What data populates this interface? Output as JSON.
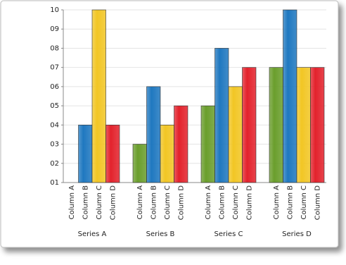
{
  "chart_data": {
    "type": "bar",
    "categories": [
      "Series A",
      "Series B",
      "Series C",
      "Series D"
    ],
    "series": [
      {
        "name": "Column A",
        "color": "#6a9e2c",
        "values": [
          1,
          3,
          5,
          7
        ]
      },
      {
        "name": "Column B",
        "color": "#1f78c0",
        "values": [
          4,
          6,
          8,
          10
        ]
      },
      {
        "name": "Column C",
        "color": "#f2c624",
        "values": [
          10,
          4,
          6,
          7
        ]
      },
      {
        "name": "Column D",
        "color": "#e3222c",
        "values": [
          4,
          5,
          7,
          7
        ]
      }
    ],
    "ylim": [
      1,
      10
    ],
    "yticks": [
      {
        "value": 1,
        "label": "01"
      },
      {
        "value": 2,
        "label": "02"
      },
      {
        "value": 3,
        "label": "03"
      },
      {
        "value": 4,
        "label": "04"
      },
      {
        "value": 5,
        "label": "05"
      },
      {
        "value": 6,
        "label": "06"
      },
      {
        "value": 7,
        "label": "07"
      },
      {
        "value": 8,
        "label": "08"
      },
      {
        "value": 9,
        "label": "09"
      },
      10
    ],
    "grid": true
  }
}
